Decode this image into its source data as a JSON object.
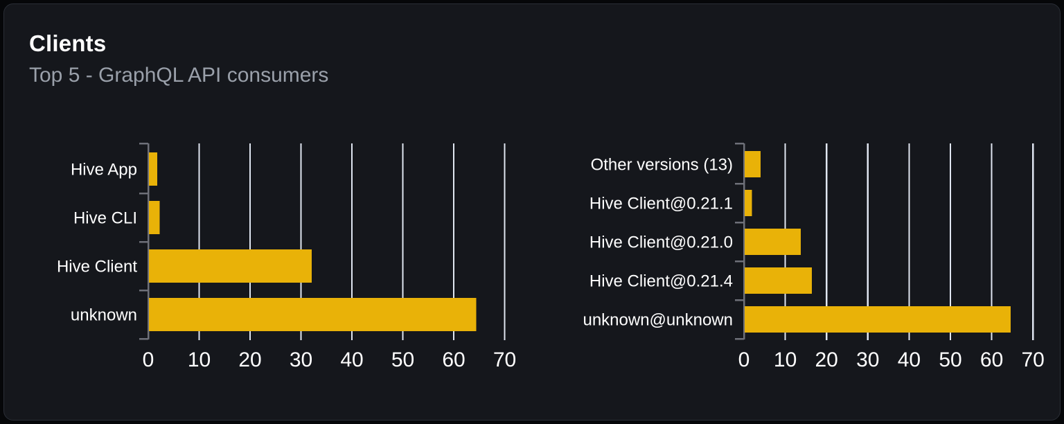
{
  "card": {
    "title": "Clients",
    "subtitle": "Top 5 - GraphQL API consumers"
  },
  "colors": {
    "bar": "#e9b208",
    "grid": "#e0e6f1",
    "axis": "#6e7079",
    "label_text": "#ffffff",
    "tick_text": "#ffffff",
    "title_text": "#ffffff",
    "subtitle_text": "#9aa0aa",
    "card_bg": "#15171c",
    "card_border": "#2a2e36",
    "page_bg": "#060709"
  },
  "chart_data": [
    {
      "type": "bar",
      "orientation": "horizontal",
      "title": "",
      "categories": [
        "Hive App",
        "Hive CLI",
        "Hive Client",
        "unknown"
      ],
      "values": [
        1.6,
        2.1,
        32,
        64.3
      ],
      "xlabel": "",
      "ylabel": "",
      "xlim": [
        0,
        70
      ],
      "xticks": [
        0,
        10,
        20,
        30,
        40,
        50,
        60,
        70
      ],
      "grid": true,
      "legend": false
    },
    {
      "type": "bar",
      "orientation": "horizontal",
      "title": "",
      "categories": [
        "Other versions (13)",
        "Hive Client@0.21.1",
        "Hive Client@0.21.0",
        "Hive Client@0.21.4",
        "unknown@unknown"
      ],
      "values": [
        3.9,
        1.8,
        13.6,
        16.3,
        64.4
      ],
      "xlabel": "",
      "ylabel": "",
      "xlim": [
        0,
        70
      ],
      "xticks": [
        0,
        10,
        20,
        30,
        40,
        50,
        60,
        70
      ],
      "grid": true,
      "legend": false
    }
  ]
}
